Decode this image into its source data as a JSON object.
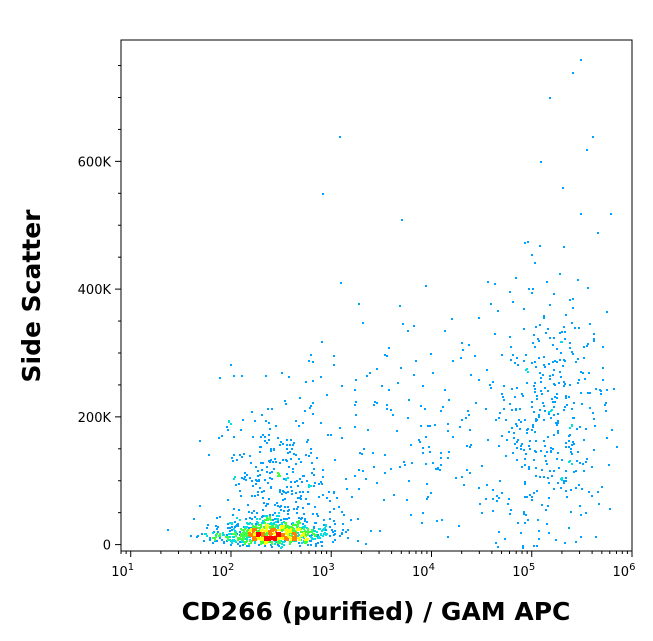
{
  "chart_data": {
    "type": "scatter",
    "title": "",
    "xlabel": "CD266 (purified) / GAM APC",
    "ylabel": "Side Scatter",
    "x_scale": "log",
    "xlim": [
      8,
      1000000
    ],
    "ylim": [
      -10000,
      790000
    ],
    "x_ticks": [
      {
        "value": 10,
        "base": "10",
        "exp": "1"
      },
      {
        "value": 100,
        "base": "10",
        "exp": "2"
      },
      {
        "value": 1000,
        "base": "10",
        "exp": "3"
      },
      {
        "value": 10000,
        "base": "10",
        "exp": "4"
      },
      {
        "value": 100000,
        "base": "10",
        "exp": "5"
      },
      {
        "value": 1000000,
        "base": "10",
        "exp": "6"
      }
    ],
    "y_ticks": [
      {
        "value": 0,
        "label": "0"
      },
      {
        "value": 200000,
        "label": "200K"
      },
      {
        "value": 400000,
        "label": "400K"
      },
      {
        "value": 600000,
        "label": "600K"
      }
    ],
    "grid": false,
    "legend": "none",
    "density_colors": [
      "#0000cc",
      "#00a0ff",
      "#00e0e0",
      "#40ff40",
      "#ffff00",
      "#ff8000",
      "#ff0000"
    ],
    "populations": [
      {
        "name": "",
        "center_x": 250,
        "center_y": 15000,
        "spread_log_x": 0.28,
        "spread_y": 20000,
        "count": 900,
        "density": "high"
      },
      {
        "name": "",
        "center_x": 300,
        "center_y": 90000,
        "spread_log_x": 0.3,
        "spread_y": 70000,
        "count": 350,
        "density": "low"
      },
      {
        "name": "",
        "center_x": 150000,
        "center_y": 200000,
        "spread_log_x": 0.3,
        "spread_y": 110000,
        "count": 420,
        "density": "low"
      },
      {
        "name": "",
        "center_x": 8000,
        "center_y": 150000,
        "spread_log_x": 0.55,
        "spread_y": 110000,
        "count": 180,
        "density": "sparse"
      }
    ]
  }
}
